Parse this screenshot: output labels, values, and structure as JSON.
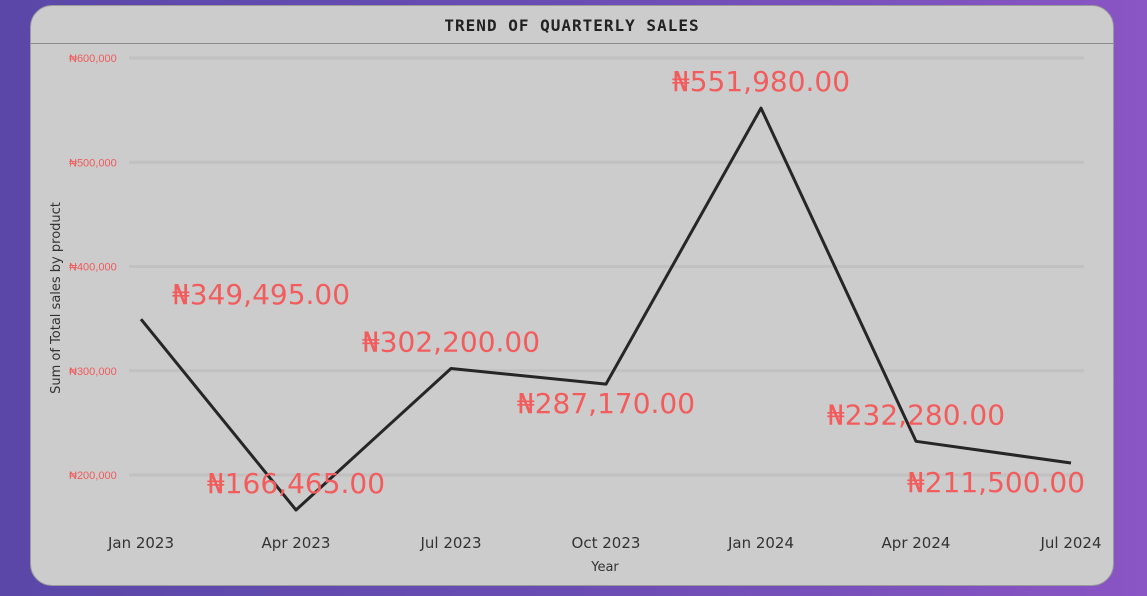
{
  "chart_data": {
    "type": "line",
    "title": "TREND OF QUARTERLY SALES",
    "xlabel": "Year",
    "ylabel": "Sum of Total sales by product",
    "categories": [
      "Jan 2023",
      "Apr 2023",
      "Jul 2023",
      "Oct 2023",
      "Jan 2024",
      "Apr 2024",
      "Jul 2024"
    ],
    "values": [
      349495,
      166465,
      302200,
      287170,
      551980,
      232280,
      211500
    ],
    "data_labels": [
      "₦349,495.00",
      "₦166,465.00",
      "₦302,200.00",
      "₦287,170.00",
      "₦551,980.00",
      "₦232,280.00",
      "₦211,500.00"
    ],
    "y_ticks": [
      200000,
      300000,
      400000,
      500000,
      600000
    ],
    "y_tick_labels": [
      "₦200,000",
      "₦300,000",
      "₦400,000",
      "₦500,000",
      "₦600,000"
    ],
    "ylim": [
      200000,
      600000
    ],
    "grid": true,
    "colors": {
      "line": "#262626",
      "labels": "#f25c5c",
      "card": "#cccccc"
    }
  }
}
